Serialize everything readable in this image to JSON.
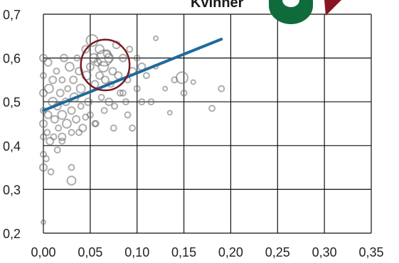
{
  "header": {
    "title": "Kvinner"
  },
  "colors": {
    "background": "#ffffff",
    "grid": "#111111",
    "points": "#6b6b6b",
    "trend_line": "#1f6a9c",
    "highlight_circle": "#7a1a22",
    "logo_green": "#0f6b3a",
    "logo_red": "#8a1522"
  },
  "logo": {
    "icon": "brand-logo-icon"
  },
  "chart_data": {
    "type": "scatter",
    "title": "Kvinner",
    "xlabel": "",
    "ylabel": "",
    "xlim": [
      0.0,
      0.35
    ],
    "ylim": [
      0.2,
      0.7
    ],
    "x_ticks": [
      0.0,
      0.05,
      0.1,
      0.15,
      0.2,
      0.25,
      0.3,
      0.35
    ],
    "x_tick_labels": [
      "0,00",
      "0,05",
      "0,10",
      "0,15",
      "0,20",
      "0,25",
      "0,30",
      "0,35"
    ],
    "y_ticks": [
      0.2,
      0.3,
      0.4,
      0.5,
      0.6,
      0.7
    ],
    "y_tick_labels": [
      "0,2",
      "0,3",
      "0,4",
      "0,5",
      "0,6",
      "0,7"
    ],
    "grid": true,
    "trend_line": {
      "x": [
        0.0,
        0.19
      ],
      "y": [
        0.48,
        0.643
      ]
    },
    "highlight": {
      "x": 0.066,
      "y": 0.584,
      "rx": 0.026,
      "ry": 0.058
    },
    "points": [
      {
        "x": 0.0,
        "y": 0.6,
        "s": 5
      },
      {
        "x": 0.0,
        "y": 0.56,
        "s": 4
      },
      {
        "x": 0.0,
        "y": 0.52,
        "s": 5
      },
      {
        "x": 0.0,
        "y": 0.48,
        "s": 4
      },
      {
        "x": 0.0,
        "y": 0.45,
        "s": 5
      },
      {
        "x": 0.0,
        "y": 0.42,
        "s": 4
      },
      {
        "x": 0.0,
        "y": 0.38,
        "s": 4
      },
      {
        "x": 0.0,
        "y": 0.35,
        "s": 5
      },
      {
        "x": 0.0,
        "y": 0.225,
        "s": 3
      },
      {
        "x": 0.005,
        "y": 0.59,
        "s": 5
      },
      {
        "x": 0.006,
        "y": 0.53,
        "s": 6
      },
      {
        "x": 0.005,
        "y": 0.47,
        "s": 5
      },
      {
        "x": 0.004,
        "y": 0.43,
        "s": 4
      },
      {
        "x": 0.003,
        "y": 0.37,
        "s": 4
      },
      {
        "x": 0.007,
        "y": 0.41,
        "s": 5
      },
      {
        "x": 0.01,
        "y": 0.55,
        "s": 5
      },
      {
        "x": 0.01,
        "y": 0.5,
        "s": 6
      },
      {
        "x": 0.012,
        "y": 0.46,
        "s": 5
      },
      {
        "x": 0.011,
        "y": 0.42,
        "s": 4
      },
      {
        "x": 0.014,
        "y": 0.57,
        "s": 4
      },
      {
        "x": 0.015,
        "y": 0.49,
        "s": 5
      },
      {
        "x": 0.016,
        "y": 0.44,
        "s": 4
      },
      {
        "x": 0.018,
        "y": 0.52,
        "s": 5
      },
      {
        "x": 0.02,
        "y": 0.47,
        "s": 6
      },
      {
        "x": 0.02,
        "y": 0.55,
        "s": 4
      },
      {
        "x": 0.02,
        "y": 0.41,
        "s": 4
      },
      {
        "x": 0.022,
        "y": 0.6,
        "s": 5
      },
      {
        "x": 0.024,
        "y": 0.5,
        "s": 5
      },
      {
        "x": 0.025,
        "y": 0.45,
        "s": 6
      },
      {
        "x": 0.026,
        "y": 0.53,
        "s": 4
      },
      {
        "x": 0.028,
        "y": 0.58,
        "s": 6
      },
      {
        "x": 0.03,
        "y": 0.48,
        "s": 5
      },
      {
        "x": 0.03,
        "y": 0.43,
        "s": 4
      },
      {
        "x": 0.032,
        "y": 0.55,
        "s": 5
      },
      {
        "x": 0.033,
        "y": 0.51,
        "s": 6
      },
      {
        "x": 0.035,
        "y": 0.46,
        "s": 5
      },
      {
        "x": 0.036,
        "y": 0.6,
        "s": 4
      },
      {
        "x": 0.038,
        "y": 0.57,
        "s": 5
      },
      {
        "x": 0.04,
        "y": 0.53,
        "s": 6
      },
      {
        "x": 0.04,
        "y": 0.49,
        "s": 4
      },
      {
        "x": 0.042,
        "y": 0.44,
        "s": 5
      },
      {
        "x": 0.045,
        "y": 0.62,
        "s": 5
      },
      {
        "x": 0.046,
        "y": 0.56,
        "s": 6
      },
      {
        "x": 0.048,
        "y": 0.5,
        "s": 5
      },
      {
        "x": 0.05,
        "y": 0.47,
        "s": 4
      },
      {
        "x": 0.05,
        "y": 0.58,
        "s": 5
      },
      {
        "x": 0.052,
        "y": 0.64,
        "s": 8
      },
      {
        "x": 0.054,
        "y": 0.6,
        "s": 6
      },
      {
        "x": 0.055,
        "y": 0.54,
        "s": 5
      },
      {
        "x": 0.056,
        "y": 0.45,
        "s": 4
      },
      {
        "x": 0.058,
        "y": 0.59,
        "s": 5
      },
      {
        "x": 0.06,
        "y": 0.62,
        "s": 6
      },
      {
        "x": 0.06,
        "y": 0.56,
        "s": 5
      },
      {
        "x": 0.062,
        "y": 0.51,
        "s": 4
      },
      {
        "x": 0.064,
        "y": 0.58,
        "s": 7
      },
      {
        "x": 0.066,
        "y": 0.55,
        "s": 5
      },
      {
        "x": 0.068,
        "y": 0.61,
        "s": 5
      },
      {
        "x": 0.07,
        "y": 0.6,
        "s": 6
      },
      {
        "x": 0.072,
        "y": 0.54,
        "s": 4
      },
      {
        "x": 0.074,
        "y": 0.57,
        "s": 5
      },
      {
        "x": 0.076,
        "y": 0.49,
        "s": 4
      },
      {
        "x": 0.078,
        "y": 0.63,
        "s": 5
      },
      {
        "x": 0.08,
        "y": 0.56,
        "s": 5
      },
      {
        "x": 0.082,
        "y": 0.52,
        "s": 4
      },
      {
        "x": 0.085,
        "y": 0.6,
        "s": 5
      },
      {
        "x": 0.088,
        "y": 0.5,
        "s": 4
      },
      {
        "x": 0.09,
        "y": 0.55,
        "s": 4
      },
      {
        "x": 0.092,
        "y": 0.62,
        "s": 4
      },
      {
        "x": 0.095,
        "y": 0.57,
        "s": 5
      },
      {
        "x": 0.1,
        "y": 0.53,
        "s": 4
      },
      {
        "x": 0.1,
        "y": 0.6,
        "s": 4
      },
      {
        "x": 0.105,
        "y": 0.5,
        "s": 4
      },
      {
        "x": 0.11,
        "y": 0.56,
        "s": 4
      },
      {
        "x": 0.115,
        "y": 0.5,
        "s": 4
      },
      {
        "x": 0.12,
        "y": 0.58,
        "s": 3
      },
      {
        "x": 0.13,
        "y": 0.53,
        "s": 3
      },
      {
        "x": 0.135,
        "y": 0.475,
        "s": 3
      },
      {
        "x": 0.14,
        "y": 0.55,
        "s": 4
      },
      {
        "x": 0.148,
        "y": 0.555,
        "s": 8
      },
      {
        "x": 0.15,
        "y": 0.52,
        "s": 4
      },
      {
        "x": 0.16,
        "y": 0.545,
        "s": 3
      },
      {
        "x": 0.18,
        "y": 0.485,
        "s": 4
      },
      {
        "x": 0.19,
        "y": 0.53,
        "s": 4
      },
      {
        "x": 0.12,
        "y": 0.645,
        "s": 3
      },
      {
        "x": 0.045,
        "y": 0.465,
        "s": 4
      },
      {
        "x": 0.055,
        "y": 0.45,
        "s": 4
      },
      {
        "x": 0.038,
        "y": 0.43,
        "s": 4
      },
      {
        "x": 0.03,
        "y": 0.35,
        "s": 4
      },
      {
        "x": 0.03,
        "y": 0.32,
        "s": 6
      },
      {
        "x": 0.02,
        "y": 0.42,
        "s": 5
      },
      {
        "x": 0.015,
        "y": 0.39,
        "s": 4
      },
      {
        "x": 0.008,
        "y": 0.34,
        "s": 4
      },
      {
        "x": 0.065,
        "y": 0.48,
        "s": 4
      },
      {
        "x": 0.075,
        "y": 0.44,
        "s": 4
      },
      {
        "x": 0.09,
        "y": 0.47,
        "s": 4
      },
      {
        "x": 0.095,
        "y": 0.44,
        "s": 4
      },
      {
        "x": 0.07,
        "y": 0.5,
        "s": 5
      },
      {
        "x": 0.085,
        "y": 0.52,
        "s": 4
      },
      {
        "x": 0.105,
        "y": 0.58,
        "s": 5
      },
      {
        "x": 0.065,
        "y": 0.6,
        "s": 11
      }
    ]
  }
}
